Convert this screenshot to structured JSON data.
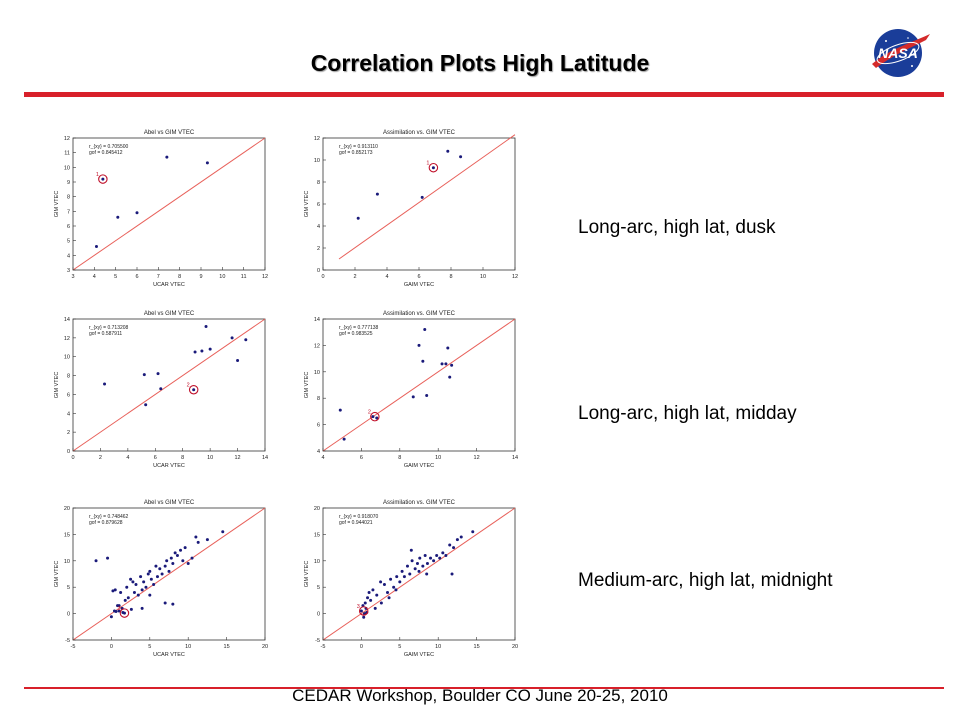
{
  "slide": {
    "title": "Correlation Plots High Latitude",
    "footer": "CEDAR Workshop, Boulder CO June 20-25, 2010",
    "logo_text": "NASA",
    "captions": [
      "Long-arc, high lat, dusk",
      "Long-arc, high lat, midday",
      "Medium-arc, high lat, midnight"
    ],
    "colors": {
      "accent_rule": "#d8202a",
      "points": "#1a1a7a",
      "fit_line": "#e8605a",
      "marker": "#c0102a"
    }
  },
  "chart_data": [
    {
      "type": "scatter",
      "title": "Abel vs GIM VTEC",
      "xlabel": "UCAR VTEC",
      "ylabel": "GIM VTEC",
      "xlim": [
        3,
        12
      ],
      "ylim": [
        3,
        12
      ],
      "xticks": [
        3,
        4,
        5,
        6,
        7,
        8,
        9,
        10,
        11,
        12
      ],
      "yticks": [
        3,
        4,
        5,
        6,
        7,
        8,
        9,
        10,
        11,
        12
      ],
      "stats": [
        "r_{xy} = 0.705500",
        "gof = 0.845412"
      ],
      "x": [
        4.1,
        4.4,
        5.1,
        6.0,
        7.4,
        9.3
      ],
      "y": [
        4.6,
        9.2,
        6.6,
        6.9,
        10.7,
        10.3
      ],
      "line": [
        [
          3,
          3
        ],
        [
          12,
          12
        ]
      ],
      "marked": {
        "x": 4.4,
        "y": 9.2,
        "label": "1"
      }
    },
    {
      "type": "scatter",
      "title": "Assimilation vs. GIM VTEC",
      "xlabel": "GAIM VTEC",
      "ylabel": "GIM VTEC",
      "xlim": [
        0,
        12
      ],
      "ylim": [
        0,
        12
      ],
      "xticks": [
        0,
        2,
        4,
        6,
        8,
        10,
        12
      ],
      "yticks": [
        0,
        2,
        4,
        6,
        8,
        10,
        12
      ],
      "stats": [
        "r_{xy} = 0.913110",
        "gof = 0.852173"
      ],
      "x": [
        2.2,
        3.4,
        6.2,
        6.9,
        7.8,
        8.6
      ],
      "y": [
        4.7,
        6.9,
        6.6,
        9.3,
        10.8,
        10.3
      ],
      "line": [
        [
          1,
          1
        ],
        [
          12,
          12.3
        ]
      ],
      "marked": {
        "x": 6.9,
        "y": 9.3,
        "label": "1"
      }
    },
    {
      "type": "scatter",
      "title": "Abel vs GIM VTEC",
      "xlabel": "UCAR VTEC",
      "ylabel": "GIM VTEC",
      "xlim": [
        0,
        14
      ],
      "ylim": [
        0,
        14
      ],
      "xticks": [
        0,
        2,
        4,
        6,
        8,
        10,
        12,
        14
      ],
      "yticks": [
        0,
        2,
        4,
        6,
        8,
        10,
        12,
        14
      ],
      "stats": [
        "r_{xy} = 0.713208",
        "gof = 0.587911"
      ],
      "x": [
        2.3,
        5.2,
        5.3,
        6.2,
        6.4,
        8.8,
        8.9,
        9.4,
        9.7,
        10.0,
        11.6,
        12.0,
        12.6
      ],
      "y": [
        7.1,
        8.1,
        4.9,
        8.2,
        6.6,
        6.5,
        10.5,
        10.6,
        13.2,
        10.8,
        12.0,
        9.6,
        11.8
      ],
      "line": [
        [
          0,
          0
        ],
        [
          14,
          14
        ]
      ],
      "marked": {
        "x": 8.8,
        "y": 6.5,
        "label": "2"
      }
    },
    {
      "type": "scatter",
      "title": "Assimilation vs. GIM VTEC",
      "xlabel": "GAIM VTEC",
      "ylabel": "GIM VTEC",
      "xlim": [
        4,
        14
      ],
      "ylim": [
        4,
        14
      ],
      "xticks": [
        4,
        6,
        8,
        10,
        12,
        14
      ],
      "yticks": [
        4,
        6,
        8,
        10,
        12,
        14
      ],
      "stats": [
        "r_{xy} = 0.777138",
        "gof = 0.983525"
      ],
      "x": [
        4.9,
        5.1,
        6.6,
        6.8,
        8.7,
        9.0,
        9.2,
        9.3,
        9.4,
        10.2,
        10.4,
        10.5,
        10.6,
        10.7
      ],
      "y": [
        7.1,
        4.9,
        6.6,
        6.5,
        8.1,
        12.0,
        10.8,
        13.2,
        8.2,
        10.6,
        10.6,
        11.8,
        9.6,
        10.5
      ],
      "line": [
        [
          4,
          4
        ],
        [
          14,
          14
        ]
      ],
      "marked": {
        "x": 6.7,
        "y": 6.6,
        "label": "2"
      }
    },
    {
      "type": "scatter",
      "title": "Abel vs GIM VTEC",
      "xlabel": "UCAR VTEC",
      "ylabel": "GIM VTEC",
      "xlim": [
        -5,
        20
      ],
      "ylim": [
        -5,
        20
      ],
      "xticks": [
        -5,
        0,
        5,
        10,
        15,
        20
      ],
      "yticks": [
        -5,
        0,
        5,
        10,
        15,
        20
      ],
      "stats": [
        "r_{xy} = 0.748462",
        "gof = 0.879628"
      ],
      "x": [
        -2.0,
        -0.5,
        0.2,
        0.5,
        0.8,
        1.0,
        1.2,
        1.4,
        1.5,
        1.8,
        2.0,
        2.2,
        2.5,
        2.8,
        3.0,
        3.2,
        3.5,
        3.8,
        4.0,
        4.2,
        4.5,
        4.8,
        5.0,
        5.2,
        5.5,
        5.8,
        6.0,
        6.3,
        6.6,
        7.0,
        7.2,
        7.5,
        7.8,
        8.0,
        8.3,
        8.6,
        9.0,
        9.3,
        9.6,
        10.0,
        10.5,
        11.0,
        11.3,
        12.5,
        14.5,
        0.4,
        1.0,
        2.6,
        4.0,
        5.0,
        7.0,
        8.0,
        1.7,
        0.0,
        0.6
      ],
      "y": [
        10.0,
        10.5,
        4.3,
        4.5,
        1.5,
        0.5,
        4.0,
        1.0,
        0.2,
        2.5,
        5.0,
        3.0,
        6.5,
        6.0,
        4.0,
        5.5,
        3.5,
        7.0,
        4.5,
        6.0,
        5.0,
        7.5,
        8.0,
        6.5,
        5.5,
        9.0,
        7.0,
        8.5,
        7.5,
        9.0,
        10.0,
        8.0,
        10.5,
        9.5,
        11.5,
        11.0,
        12.0,
        10.0,
        12.5,
        9.5,
        10.5,
        14.5,
        13.5,
        14.0,
        15.5,
        0.5,
        1.5,
        0.8,
        1.0,
        3.5,
        2.0,
        1.8,
        0.1,
        -0.6,
        0.4
      ],
      "line": [
        [
          -5,
          -5
        ],
        [
          20,
          20
        ]
      ],
      "marked": {
        "x": 1.7,
        "y": 0.1,
        "label": "3"
      }
    },
    {
      "type": "scatter",
      "title": "Assimilation vs. GIM VTEC",
      "xlabel": "GAIM VTEC",
      "ylabel": "GIM VTEC",
      "xlim": [
        -5,
        20
      ],
      "ylim": [
        -5,
        20
      ],
      "xticks": [
        -5,
        0,
        5,
        10,
        15,
        20
      ],
      "yticks": [
        -5,
        0,
        5,
        10,
        15,
        20
      ],
      "stats": [
        "r_{xy} = 0.918070",
        "gof = 0.944021"
      ],
      "x": [
        0.0,
        0.2,
        0.4,
        0.5,
        0.6,
        0.8,
        1.0,
        1.2,
        1.5,
        2.0,
        2.5,
        3.0,
        3.4,
        3.8,
        4.2,
        4.6,
        5.0,
        5.3,
        5.6,
        6.0,
        6.3,
        6.6,
        7.0,
        7.3,
        7.6,
        8.0,
        8.3,
        8.6,
        9.0,
        9.4,
        9.8,
        10.2,
        10.6,
        11.0,
        11.5,
        12.0,
        12.5,
        13.0,
        14.5,
        6.5,
        7.5,
        8.5,
        4.5,
        3.6,
        2.6,
        1.8,
        0.3,
        0.7,
        11.8
      ],
      "y": [
        0.5,
        1.5,
        0.0,
        2.0,
        1.0,
        3.0,
        4.0,
        2.5,
        4.5,
        3.5,
        6.0,
        5.5,
        4.0,
        6.5,
        5.0,
        7.0,
        6.0,
        8.0,
        7.0,
        9.0,
        7.5,
        10.0,
        8.5,
        9.5,
        10.5,
        9.0,
        11.0,
        9.5,
        10.5,
        10.0,
        11.0,
        10.5,
        11.5,
        11.0,
        13.0,
        12.5,
        14.0,
        14.5,
        15.5,
        12.0,
        8.0,
        7.5,
        4.5,
        3.0,
        2.0,
        1.0,
        -0.7,
        0.2,
        7.5
      ],
      "line": [
        [
          -5,
          -5
        ],
        [
          20,
          20
        ]
      ],
      "marked": {
        "x": 0.3,
        "y": 0.5,
        "label": "3"
      }
    }
  ]
}
